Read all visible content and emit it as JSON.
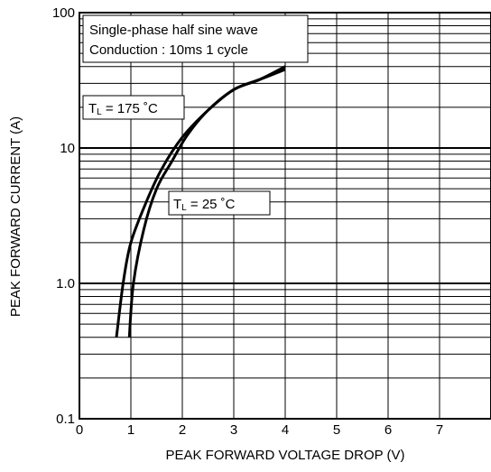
{
  "chart_data": {
    "type": "line",
    "x_scale": "linear",
    "y_scale": "log",
    "xlabel": "PEAK FORWARD VOLTAGE DROP (V)",
    "ylabel": "PEAK FORWARD CURRENT (A)",
    "xlim": [
      0,
      8
    ],
    "ylim": [
      0.1,
      100
    ],
    "x_ticks": [
      "0",
      "1",
      "2",
      "3",
      "4",
      "5",
      "6",
      "7"
    ],
    "y_ticks": [
      {
        "value": 0.1,
        "label": "0.1"
      },
      {
        "value": 1,
        "label": "1.0"
      },
      {
        "value": 10,
        "label": "10"
      },
      {
        "value": 100,
        "label": "100"
      }
    ],
    "grid": true,
    "series": [
      {
        "name": "TL = 175 °C",
        "points": [
          [
            0.72,
            0.4
          ],
          [
            0.85,
            1.0
          ],
          [
            1.0,
            2.0
          ],
          [
            1.3,
            4.0
          ],
          [
            1.6,
            7.0
          ],
          [
            2.0,
            12.0
          ],
          [
            2.5,
            19.0
          ],
          [
            3.0,
            27.0
          ],
          [
            3.5,
            32.0
          ],
          [
            4.0,
            40.0
          ]
        ]
      },
      {
        "name": "TL = 25 °C",
        "points": [
          [
            0.97,
            0.4
          ],
          [
            1.05,
            1.0
          ],
          [
            1.25,
            2.5
          ],
          [
            1.5,
            5.0
          ],
          [
            1.8,
            8.0
          ],
          [
            2.1,
            12.5
          ],
          [
            2.5,
            19.0
          ],
          [
            3.0,
            27.0
          ],
          [
            3.5,
            32.0
          ],
          [
            4.0,
            38.0
          ]
        ]
      }
    ],
    "annotations": {
      "conditions_line1": "Single-phase half sine wave",
      "conditions_line2": "Conduction : 10ms 1 cycle",
      "label_175": {
        "prefix": "T",
        "sub": "L",
        "suffix": " = 175 ˚C"
      },
      "label_25": {
        "prefix": "T",
        "sub": "L",
        "suffix": " = 25 ˚C"
      }
    }
  }
}
